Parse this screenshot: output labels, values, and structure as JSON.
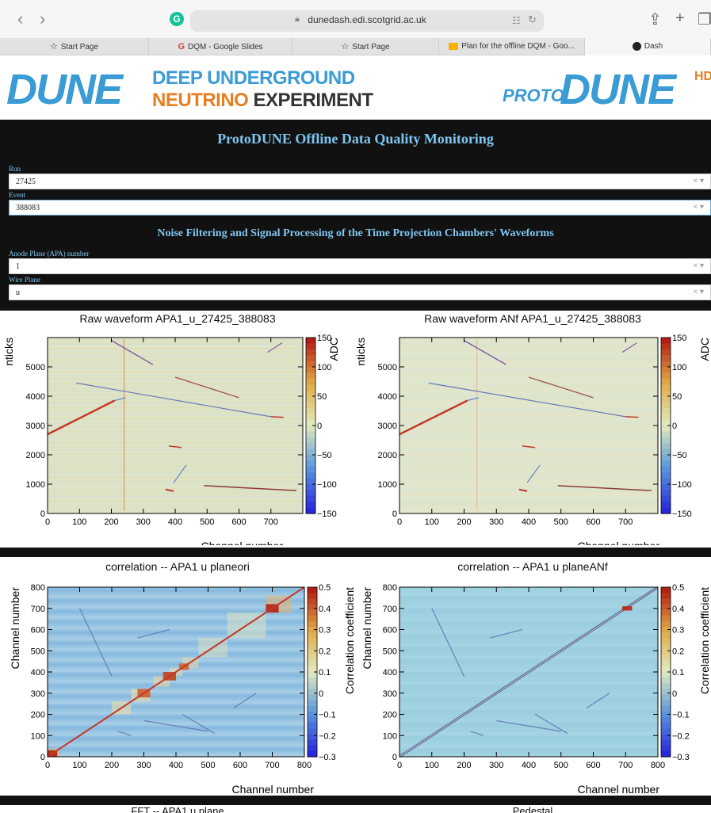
{
  "browser": {
    "url": "dunedash.edi.scotgrid.ac.uk",
    "tabs": [
      {
        "label": "Start Page",
        "icon": "star-icon"
      },
      {
        "label": "DQM - Google Slides",
        "icon": "google-icon"
      },
      {
        "label": "Start Page",
        "icon": "star-icon"
      },
      {
        "label": "Plan for the offline DQM - Goo...",
        "icon": "slides-icon"
      },
      {
        "label": "Dash",
        "icon": "dash-icon"
      }
    ],
    "grammarly_letter": "G"
  },
  "banner": {
    "dune_logo": "DUNE",
    "line1": "DEEP UNDERGROUND",
    "line2a": "NEUTRINO",
    "line2b": " EXPERIMENT",
    "proto_word": "PROTO",
    "proto_logo": "DUNE",
    "proto_suffix": "HD"
  },
  "dashboard": {
    "title": "ProtoDUNE Offline Data Quality Monitoring",
    "run_label": "Run",
    "run_value": "27425",
    "event_label": "Event",
    "event_value": "388083",
    "section_title": "Noise Filtering and Signal Processing of the Time Projection Chambers' Waveforms",
    "apa_label": "Anode Plane (APA) number",
    "apa_value": "1",
    "plane_label": "Wire Plane",
    "plane_value": "u",
    "clear_symbol": "× ▾"
  },
  "colors": {
    "dashboard_bg": "#111111",
    "heading": "#7ec6f0",
    "accent_blue": "#3a9bd5",
    "accent_orange": "#e67e22"
  },
  "chart_data": [
    {
      "type": "heatmap",
      "title": "Raw waveform APA1_u_27425_388083",
      "xlabel": "Channel number",
      "ylabel": "nticks",
      "colorbar_label": "ADC",
      "xlim": [
        0,
        800
      ],
      "ylim": [
        0,
        6000
      ],
      "xticks": [
        0,
        100,
        200,
        300,
        400,
        500,
        600,
        700
      ],
      "yticks": [
        0,
        1000,
        2000,
        3000,
        4000,
        5000
      ],
      "zlim": [
        -150,
        150
      ],
      "zticks": [
        -150,
        -100,
        -50,
        0,
        50,
        100,
        150
      ]
    },
    {
      "type": "heatmap",
      "title": "Raw waveform ANf APA1_u_27425_388083",
      "xlabel": "Channel number",
      "ylabel": "nticks",
      "colorbar_label": "ADC",
      "xlim": [
        0,
        800
      ],
      "ylim": [
        0,
        6000
      ],
      "xticks": [
        0,
        100,
        200,
        300,
        400,
        500,
        600,
        700
      ],
      "yticks": [
        0,
        1000,
        2000,
        3000,
        4000,
        5000
      ],
      "zlim": [
        -150,
        150
      ],
      "zticks": [
        -150,
        -100,
        -50,
        0,
        50,
        100,
        150
      ]
    },
    {
      "type": "heatmap",
      "title": "correlation -- APA1 u planeori",
      "xlabel": "Channel number",
      "ylabel": "Channel number",
      "colorbar_label": "Correlation coefficient",
      "xlim": [
        0,
        800
      ],
      "ylim": [
        0,
        800
      ],
      "xticks": [
        0,
        100,
        200,
        300,
        400,
        500,
        600,
        700,
        800
      ],
      "yticks": [
        0,
        100,
        200,
        300,
        400,
        500,
        600,
        700,
        800
      ],
      "zlim": [
        -0.3,
        0.5
      ],
      "zticks": [
        -0.3,
        -0.2,
        -0.1,
        0,
        0.1,
        0.2,
        0.3,
        0.4,
        0.5
      ]
    },
    {
      "type": "heatmap",
      "title": "correlation -- APA1 u planeANf",
      "xlabel": "Channel number",
      "ylabel": "Channel number",
      "colorbar_label": "Correlation coefficient",
      "xlim": [
        0,
        800
      ],
      "ylim": [
        0,
        800
      ],
      "xticks": [
        0,
        100,
        200,
        300,
        400,
        500,
        600,
        700,
        800
      ],
      "yticks": [
        0,
        100,
        200,
        300,
        400,
        500,
        600,
        700,
        800
      ],
      "zlim": [
        -0.3,
        0.5
      ],
      "zticks": [
        -0.3,
        -0.2,
        -0.1,
        0,
        0.1,
        0.2,
        0.3,
        0.4,
        0.5
      ]
    }
  ],
  "next_titles": [
    "FFT -- APA1 u plane",
    "Pedestal"
  ]
}
